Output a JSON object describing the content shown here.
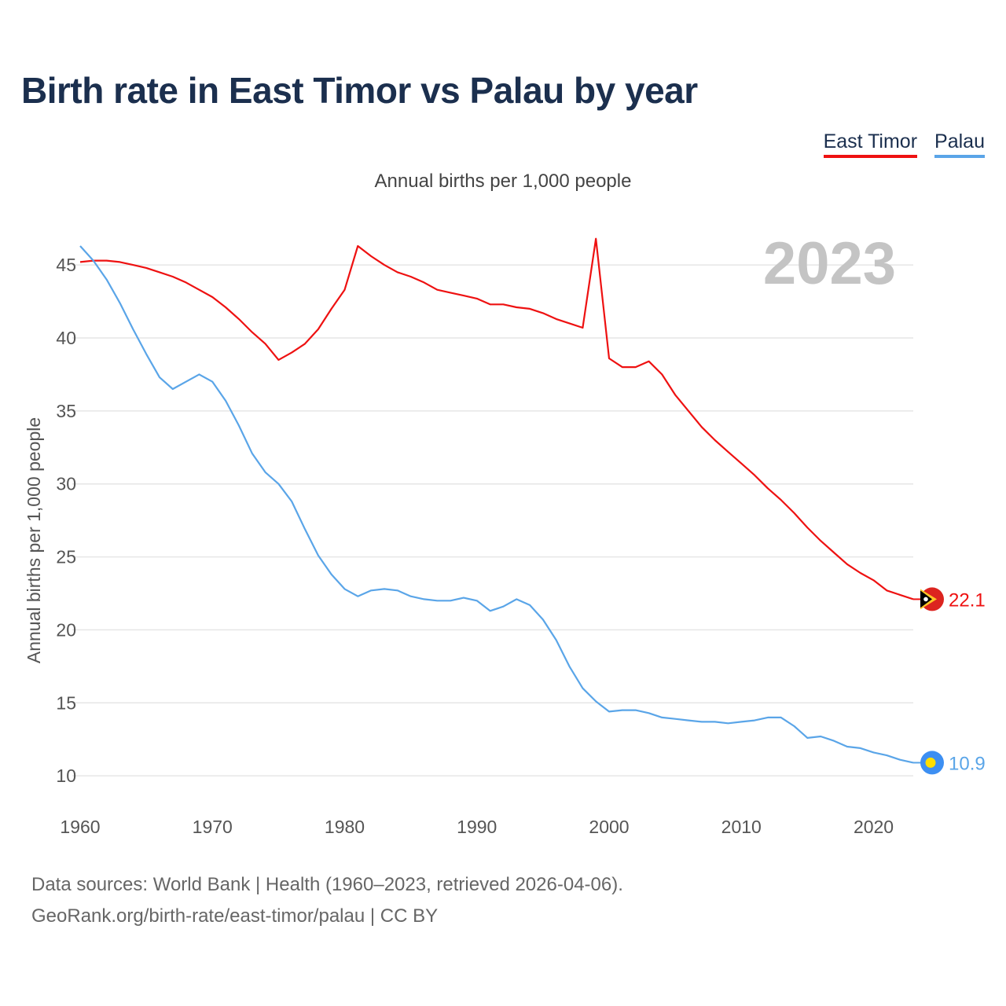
{
  "title": "Birth rate in East Timor vs Palau by year",
  "subtitle": "Annual births per 1,000 people",
  "source": {
    "line1": "Data sources: World Bank | Health (1960–2023, retrieved 2026-04-06).",
    "line2": "GeoRank.org/birth-rate/east-timor/palau | CC BY"
  },
  "chart_data": {
    "type": "line",
    "title": "Birth rate in East Timor vs Palau by year",
    "subtitle": "Annual births per 1,000 people",
    "xlabel": "",
    "ylabel": "Annual births per 1,000 people",
    "xlim": [
      1960,
      2023
    ],
    "ylim": [
      8.5,
      47
    ],
    "x_ticks": [
      1960,
      1970,
      1980,
      1990,
      2000,
      2010,
      2020
    ],
    "y_ticks": [
      10,
      15,
      20,
      25,
      30,
      35,
      40,
      45
    ],
    "grid": true,
    "legend_position": "top-right",
    "year_watermark": "2023",
    "x": [
      1960,
      1961,
      1962,
      1963,
      1964,
      1965,
      1966,
      1967,
      1968,
      1969,
      1970,
      1971,
      1972,
      1973,
      1974,
      1975,
      1976,
      1977,
      1978,
      1979,
      1980,
      1981,
      1982,
      1983,
      1984,
      1985,
      1986,
      1987,
      1988,
      1989,
      1990,
      1991,
      1992,
      1993,
      1994,
      1995,
      1996,
      1997,
      1998,
      1999,
      2000,
      2001,
      2002,
      2003,
      2004,
      2005,
      2006,
      2007,
      2008,
      2009,
      2010,
      2011,
      2012,
      2013,
      2014,
      2015,
      2016,
      2017,
      2018,
      2019,
      2020,
      2021,
      2022,
      2023
    ],
    "series": [
      {
        "name": "East Timor",
        "color": "#ee1111",
        "end_label": "22.1",
        "marker_icon": "east-timor-flag-icon",
        "values": [
          45.2,
          45.3,
          45.3,
          45.2,
          45.0,
          44.8,
          44.5,
          44.2,
          43.8,
          43.3,
          42.8,
          42.1,
          41.3,
          40.4,
          39.6,
          38.5,
          39.0,
          39.6,
          40.6,
          42.0,
          43.3,
          46.3,
          45.6,
          45.0,
          44.5,
          44.2,
          43.8,
          43.3,
          43.1,
          42.9,
          42.7,
          42.3,
          42.3,
          42.1,
          42.0,
          41.7,
          41.3,
          41.0,
          40.7,
          46.8,
          38.6,
          38.0,
          38.0,
          38.4,
          37.5,
          36.1,
          35.0,
          33.9,
          33.0,
          32.2,
          31.4,
          30.6,
          29.7,
          28.9,
          28.0,
          27.0,
          26.1,
          25.3,
          24.5,
          23.9,
          23.4,
          22.7,
          22.4,
          22.1
        ]
      },
      {
        "name": "Palau",
        "color": "#5aa5e8",
        "end_label": "10.9",
        "marker_icon": "palau-flag-icon",
        "values": [
          46.3,
          45.3,
          44.0,
          42.4,
          40.6,
          38.9,
          37.3,
          36.5,
          37.0,
          37.5,
          37.0,
          35.7,
          34.0,
          32.1,
          30.8,
          30.0,
          28.8,
          26.9,
          25.1,
          23.8,
          22.8,
          22.3,
          22.7,
          22.8,
          22.7,
          22.3,
          22.1,
          22.0,
          22.0,
          22.2,
          22.0,
          21.3,
          21.6,
          22.1,
          21.7,
          20.7,
          19.3,
          17.5,
          16.0,
          15.1,
          14.4,
          14.5,
          14.5,
          14.3,
          14.0,
          13.9,
          13.8,
          13.7,
          13.7,
          13.6,
          13.7,
          13.8,
          14.0,
          14.0,
          13.4,
          12.6,
          12.7,
          12.4,
          12.0,
          11.9,
          11.6,
          11.4,
          11.1,
          10.9
        ]
      }
    ]
  }
}
